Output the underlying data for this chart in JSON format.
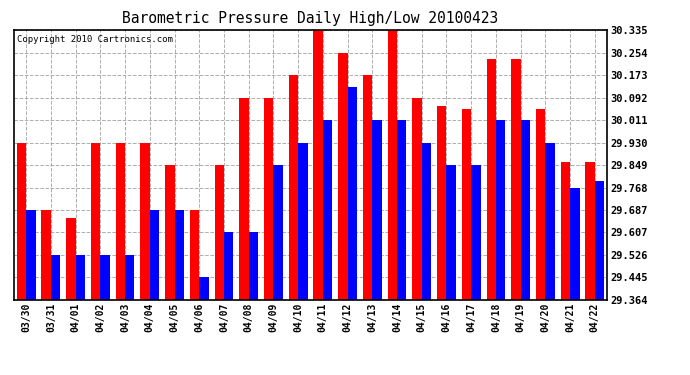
{
  "title": "Barometric Pressure Daily High/Low 20100423",
  "copyright": "Copyright 2010 Cartronics.com",
  "dates": [
    "03/30",
    "03/31",
    "04/01",
    "04/02",
    "04/03",
    "04/04",
    "04/05",
    "04/06",
    "04/07",
    "04/08",
    "04/09",
    "04/10",
    "04/11",
    "04/12",
    "04/13",
    "04/14",
    "04/15",
    "04/16",
    "04/17",
    "04/18",
    "04/19",
    "04/20",
    "04/21",
    "04/22"
  ],
  "highs": [
    29.93,
    29.687,
    29.66,
    29.93,
    29.93,
    29.93,
    29.849,
    29.687,
    29.849,
    30.092,
    30.092,
    30.173,
    30.335,
    30.254,
    30.173,
    30.335,
    30.092,
    30.06,
    30.05,
    30.23,
    30.23,
    30.05,
    29.86,
    29.86
  ],
  "lows": [
    29.687,
    29.526,
    29.526,
    29.526,
    29.526,
    29.687,
    29.687,
    29.445,
    29.607,
    29.607,
    29.849,
    29.93,
    30.011,
    30.13,
    30.011,
    30.011,
    29.93,
    29.849,
    29.849,
    30.011,
    30.011,
    29.93,
    29.768,
    29.793
  ],
  "high_color": "#ff0000",
  "low_color": "#0000ff",
  "bg_color": "#ffffff",
  "grid_color": "#999999",
  "yticks": [
    29.364,
    29.445,
    29.526,
    29.607,
    29.687,
    29.768,
    29.849,
    29.93,
    30.011,
    30.092,
    30.173,
    30.254,
    30.335
  ],
  "ylim_min": 29.364,
  "ylim_max": 30.335,
  "bar_width": 0.38
}
